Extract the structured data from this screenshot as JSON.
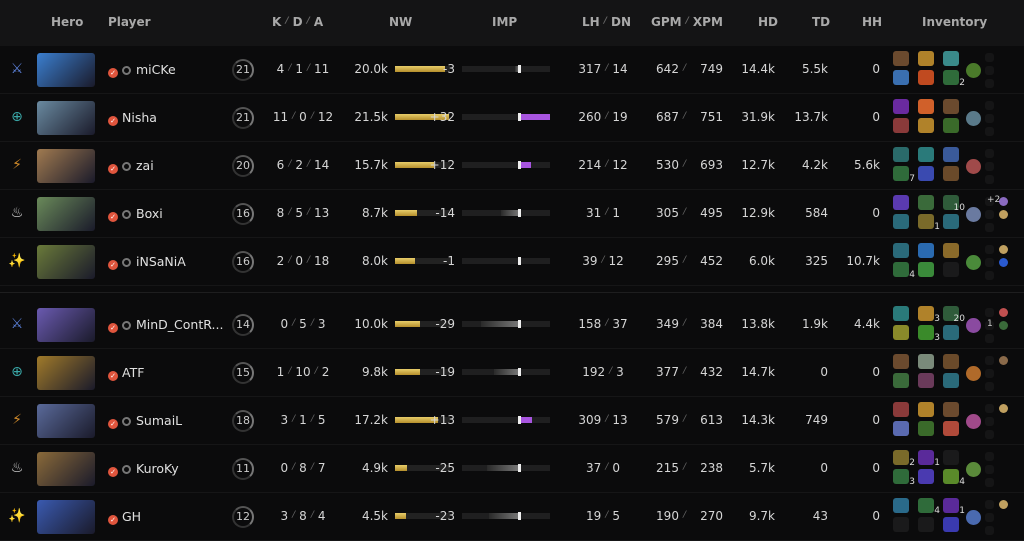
{
  "header": {
    "hero": "Hero",
    "player": "Player",
    "k": "K",
    "d": "D",
    "a": "A",
    "nw": "NW",
    "imp": "IMP",
    "lh": "LH",
    "dn": "DN",
    "gpm": "GPM",
    "xpm": "XPM",
    "hd": "HD",
    "td": "TD",
    "hh": "HH",
    "inventory": "Inventory"
  },
  "colors": {
    "nw_bar": "#d4b04a",
    "imp_positive": "#a855e0",
    "imp_negative": "#777777",
    "verified": "#e0553d"
  },
  "rows": [
    {
      "role": "sword-icon",
      "role_color": "#5a7fd6",
      "portrait": "#3b7fd0",
      "party": true,
      "name": "miCKe",
      "level": "21",
      "k": "4",
      "d": "1",
      "a": "11",
      "nw": "20.0k",
      "nw_value": 20.0,
      "imp": "-3",
      "imp_value": -3,
      "lh": "317",
      "dn": "14",
      "gpm": "642",
      "xpm": "749",
      "hd": "14.4k",
      "td": "5.5k",
      "hh": "0",
      "items": [
        {
          "c": "#6b4a2e"
        },
        {
          "c": "#b0822a"
        },
        {
          "c": "#3a8a8a"
        },
        {
          "c": "#3a6fb0"
        },
        {
          "c": "#c04a20"
        },
        {
          "c": "#2f6b3a",
          "ch": "2"
        }
      ],
      "neutral": "#4a7a2a",
      "aghs": []
    },
    {
      "role": "bow-icon",
      "role_color": "#3aa8a8",
      "portrait": "#6a8aa0",
      "party": false,
      "name": "Nisha",
      "level": "21",
      "k": "11",
      "d": "0",
      "a": "12",
      "nw": "21.5k",
      "nw_value": 21.5,
      "imp": "+32",
      "imp_value": 32,
      "lh": "260",
      "dn": "19",
      "gpm": "687",
      "xpm": "751",
      "hd": "31.9k",
      "td": "13.7k",
      "hh": "0",
      "items": [
        {
          "c": "#6a2aa0"
        },
        {
          "c": "#d0602a"
        },
        {
          "c": "#6b4a2e"
        },
        {
          "c": "#8a3a3a"
        },
        {
          "c": "#b0822a"
        },
        {
          "c": "#3a6a2a"
        }
      ],
      "neutral": "#5a7a8a",
      "aghs": []
    },
    {
      "role": "shield-lightning-icon",
      "role_color": "#d08a2a",
      "portrait": "#a07a50",
      "party": true,
      "name": "zai",
      "level": "20",
      "k": "6",
      "d": "2",
      "a": "14",
      "nw": "15.7k",
      "nw_value": 15.7,
      "imp": "+12",
      "imp_value": 12,
      "lh": "214",
      "dn": "12",
      "gpm": "530",
      "xpm": "693",
      "hd": "12.7k",
      "td": "4.2k",
      "hh": "5.6k",
      "items": [
        {
          "c": "#2a6a6a"
        },
        {
          "c": "#2a7a7a"
        },
        {
          "c": "#3a5a9a"
        },
        {
          "c": "#2f6b3a",
          "ch": "7"
        },
        {
          "c": "#3a4ab0"
        },
        {
          "c": "#6a4a2a"
        }
      ],
      "neutral": "#a04a4a",
      "aghs": []
    },
    {
      "role": "support-fire-icon",
      "role_color": "#e0e0e0",
      "portrait": "#6a8a5a",
      "party": true,
      "name": "Boxi",
      "level": "16",
      "k": "8",
      "d": "5",
      "a": "13",
      "nw": "8.7k",
      "nw_value": 8.7,
      "imp": "-14",
      "imp_value": -14,
      "lh": "31",
      "dn": "1",
      "gpm": "305",
      "xpm": "495",
      "hd": "12.9k",
      "td": "584",
      "hh": "0",
      "items": [
        {
          "c": "#5a3ab0"
        },
        {
          "c": "#3a6a3a"
        },
        {
          "c": "#2f5b3a",
          "ch": "10"
        },
        {
          "c": "#2a6a7a"
        },
        {
          "c": "#7a6a2a",
          "ch": "1"
        },
        {
          "c": "#2a6a7a"
        }
      ],
      "neutral": "#6a7aa0",
      "aghs": [
        {
          "label": "+2",
          "c": "#8a6ac0"
        },
        {
          "c": "#c0a060"
        }
      ]
    },
    {
      "role": "support-sparkle-icon",
      "role_color": "#e0e0e0",
      "portrait": "#6a7a3a",
      "party": true,
      "name": "iNSaNiA",
      "level": "16",
      "k": "2",
      "d": "0",
      "a": "18",
      "nw": "8.0k",
      "nw_value": 8.0,
      "imp": "-1",
      "imp_value": -1,
      "lh": "39",
      "dn": "12",
      "gpm": "295",
      "xpm": "452",
      "hd": "6.0k",
      "td": "325",
      "hh": "10.7k",
      "items": [
        {
          "c": "#2a6a7a"
        },
        {
          "c": "#2a6ab0"
        },
        {
          "c": "#8a6a2a"
        },
        {
          "c": "#2f6b3a",
          "ch": "4"
        },
        {
          "c": "#3a8a3a"
        },
        {
          "c": "#1a1a1b"
        }
      ],
      "neutral": "#4a8a3a",
      "aghs": [
        {
          "c": "#c0a060"
        },
        {
          "c": "#2a5ad0"
        }
      ]
    },
    {
      "role": "sword-icon",
      "role_color": "#5a7fd6",
      "portrait": "#6a5ab0",
      "party": true,
      "name": "MinD_ContR...",
      "level": "14",
      "k": "0",
      "d": "5",
      "a": "3",
      "nw": "10.0k",
      "nw_value": 10.0,
      "imp": "-29",
      "imp_value": -29,
      "lh": "158",
      "dn": "37",
      "gpm": "349",
      "xpm": "384",
      "hd": "13.8k",
      "td": "1.9k",
      "hh": "4.4k",
      "items": [
        {
          "c": "#2a7a7a"
        },
        {
          "c": "#b0822a",
          "ch": "3"
        },
        {
          "c": "#2f5b3a",
          "ch": "20"
        },
        {
          "c": "#8a8a2a"
        },
        {
          "c": "#3a8a2a",
          "ch": "3"
        },
        {
          "c": "#2a6a7a"
        }
      ],
      "neutral": "#8a4aa0",
      "aghs": [
        {
          "c": "#c05050"
        },
        {
          "c": "#3a6a3a",
          "label": "1"
        }
      ]
    },
    {
      "role": "bow-icon",
      "role_color": "#3aa8a8",
      "portrait": "#a07a2a",
      "party": false,
      "name": "ATF",
      "level": "15",
      "k": "1",
      "d": "10",
      "a": "2",
      "nw": "9.8k",
      "nw_value": 9.8,
      "imp": "-19",
      "imp_value": -19,
      "lh": "192",
      "dn": "3",
      "gpm": "377",
      "xpm": "432",
      "hd": "14.7k",
      "td": "0",
      "hh": "0",
      "items": [
        {
          "c": "#6b4a2e"
        },
        {
          "c": "#7a8a7a"
        },
        {
          "c": "#6a4a2a"
        },
        {
          "c": "#3a6a3a"
        },
        {
          "c": "#6a3a5a"
        },
        {
          "c": "#2a6a7a"
        }
      ],
      "neutral": "#b06a2a",
      "aghs": [
        {
          "c": "#8a6a4a"
        }
      ]
    },
    {
      "role": "shield-lightning-icon",
      "role_color": "#d08a2a",
      "portrait": "#5a6a9a",
      "party": true,
      "name": "SumaiL",
      "level": "18",
      "k": "3",
      "d": "1",
      "a": "5",
      "nw": "17.2k",
      "nw_value": 17.2,
      "imp": "+13",
      "imp_value": 13,
      "lh": "309",
      "dn": "13",
      "gpm": "579",
      "xpm": "613",
      "hd": "14.3k",
      "td": "749",
      "hh": "0",
      "items": [
        {
          "c": "#8a3a3a"
        },
        {
          "c": "#b0822a"
        },
        {
          "c": "#6b4a2e"
        },
        {
          "c": "#5a6ab0"
        },
        {
          "c": "#3a6a2a"
        },
        {
          "c": "#b04a3a"
        }
      ],
      "neutral": "#a04a8a",
      "aghs": [
        {
          "c": "#c0a060"
        }
      ]
    },
    {
      "role": "support-fire-icon",
      "role_color": "#e0e0e0",
      "portrait": "#8a6a3a",
      "party": true,
      "name": "KuroKy",
      "level": "11",
      "k": "0",
      "d": "8",
      "a": "7",
      "nw": "4.9k",
      "nw_value": 4.9,
      "imp": "-25",
      "imp_value": -25,
      "lh": "37",
      "dn": "0",
      "gpm": "215",
      "xpm": "238",
      "hd": "5.7k",
      "td": "0",
      "hh": "0",
      "items": [
        {
          "c": "#7a6a2a",
          "ch": "2"
        },
        {
          "c": "#5a2a9a",
          "ch": "1"
        },
        {
          "c": "#1a1a1b"
        },
        {
          "c": "#2f6b3a",
          "ch": "3"
        },
        {
          "c": "#4a3ab0"
        },
        {
          "c": "#5a8a2a",
          "ch": "4"
        }
      ],
      "neutral": "#5a8a3a",
      "aghs": []
    },
    {
      "role": "support-sparkle-icon",
      "role_color": "#e0e0e0",
      "portrait": "#3a5ab0",
      "party": false,
      "name": "GH",
      "level": "12",
      "k": "3",
      "d": "8",
      "a": "4",
      "nw": "4.5k",
      "nw_value": 4.5,
      "imp": "-23",
      "imp_value": -23,
      "lh": "19",
      "dn": "5",
      "gpm": "190",
      "xpm": "270",
      "hd": "9.7k",
      "td": "43",
      "hh": "0",
      "items": [
        {
          "c": "#2a6a8a"
        },
        {
          "c": "#2f6b3a",
          "ch": "4"
        },
        {
          "c": "#5a2a9a",
          "ch": "1"
        },
        {
          "c": "#1a1a1b"
        },
        {
          "c": "#1a1a1b"
        },
        {
          "c": "#3a3ab0"
        }
      ],
      "neutral": "#4a6ab0",
      "aghs": [
        {
          "c": "#c0a060"
        }
      ]
    }
  ]
}
